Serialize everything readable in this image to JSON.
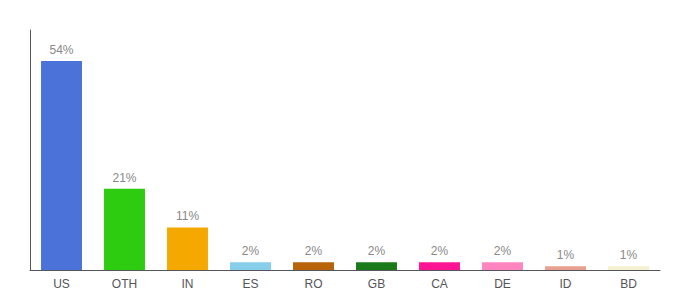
{
  "chart_data": {
    "type": "bar",
    "categories": [
      "US",
      "OTH",
      "IN",
      "ES",
      "RO",
      "GB",
      "CA",
      "DE",
      "ID",
      "BD"
    ],
    "values": [
      54,
      21,
      11,
      2,
      2,
      2,
      2,
      2,
      1,
      1
    ],
    "value_labels": [
      "54%",
      "21%",
      "11%",
      "2%",
      "2%",
      "2%",
      "2%",
      "2%",
      "1%",
      "1%"
    ],
    "colors": [
      "#4a72d9",
      "#2ecc10",
      "#f5a800",
      "#87ceeb",
      "#b8630a",
      "#1a7a1a",
      "#ff1493",
      "#ff85c0",
      "#e8a090",
      "#f5f0d0"
    ],
    "ylim": [
      0,
      62
    ],
    "data_labels": true,
    "tick_labels": "x",
    "grid": false
  }
}
